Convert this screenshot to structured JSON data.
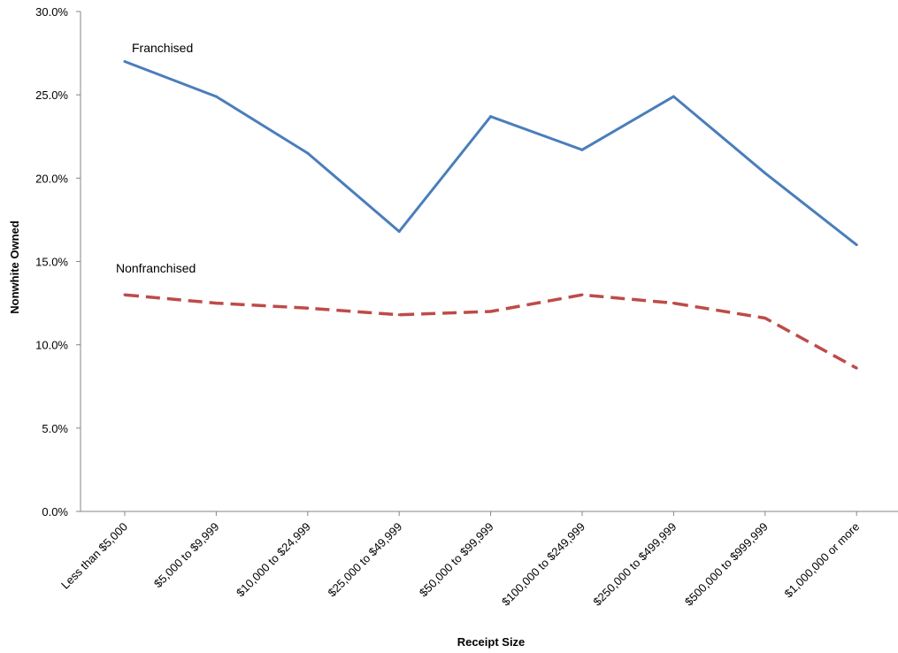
{
  "chart_data": {
    "type": "line",
    "title": "",
    "xlabel": "Receipt Size",
    "ylabel": "Nonwhite Owned",
    "categories": [
      "Less than $5,000",
      "$5,000 to $9,999",
      "$10,000 to $24,999",
      "$25,000 to $49,999",
      "$50,000 to $99,999",
      "$100,000 to $249,999",
      "$250,000 to $499,999",
      "$500,000 to $999,999",
      "$1,000,000 or more"
    ],
    "ylim": [
      0,
      30
    ],
    "yticks": [
      {
        "value": 0,
        "label": "0.0%"
      },
      {
        "value": 5,
        "label": "5.0%"
      },
      {
        "value": 10,
        "label": "10.0%"
      },
      {
        "value": 15,
        "label": "15.0%"
      },
      {
        "value": 20,
        "label": "20.0%"
      },
      {
        "value": 25,
        "label": "25.0%"
      },
      {
        "value": 30,
        "label": "30.0%"
      }
    ],
    "grid": false,
    "legend": "none (series labeled directly on chart)",
    "series": [
      {
        "name": "Franchised",
        "color": "#4a7ebb",
        "style": "solid",
        "values": [
          27.0,
          24.9,
          21.5,
          16.8,
          23.7,
          21.7,
          24.9,
          20.3,
          16.0
        ]
      },
      {
        "name": "Nonfranchised",
        "color": "#be4b48",
        "style": "dashed",
        "values": [
          13.0,
          12.5,
          12.2,
          11.8,
          12.0,
          13.0,
          12.5,
          11.6,
          8.6
        ]
      }
    ]
  }
}
